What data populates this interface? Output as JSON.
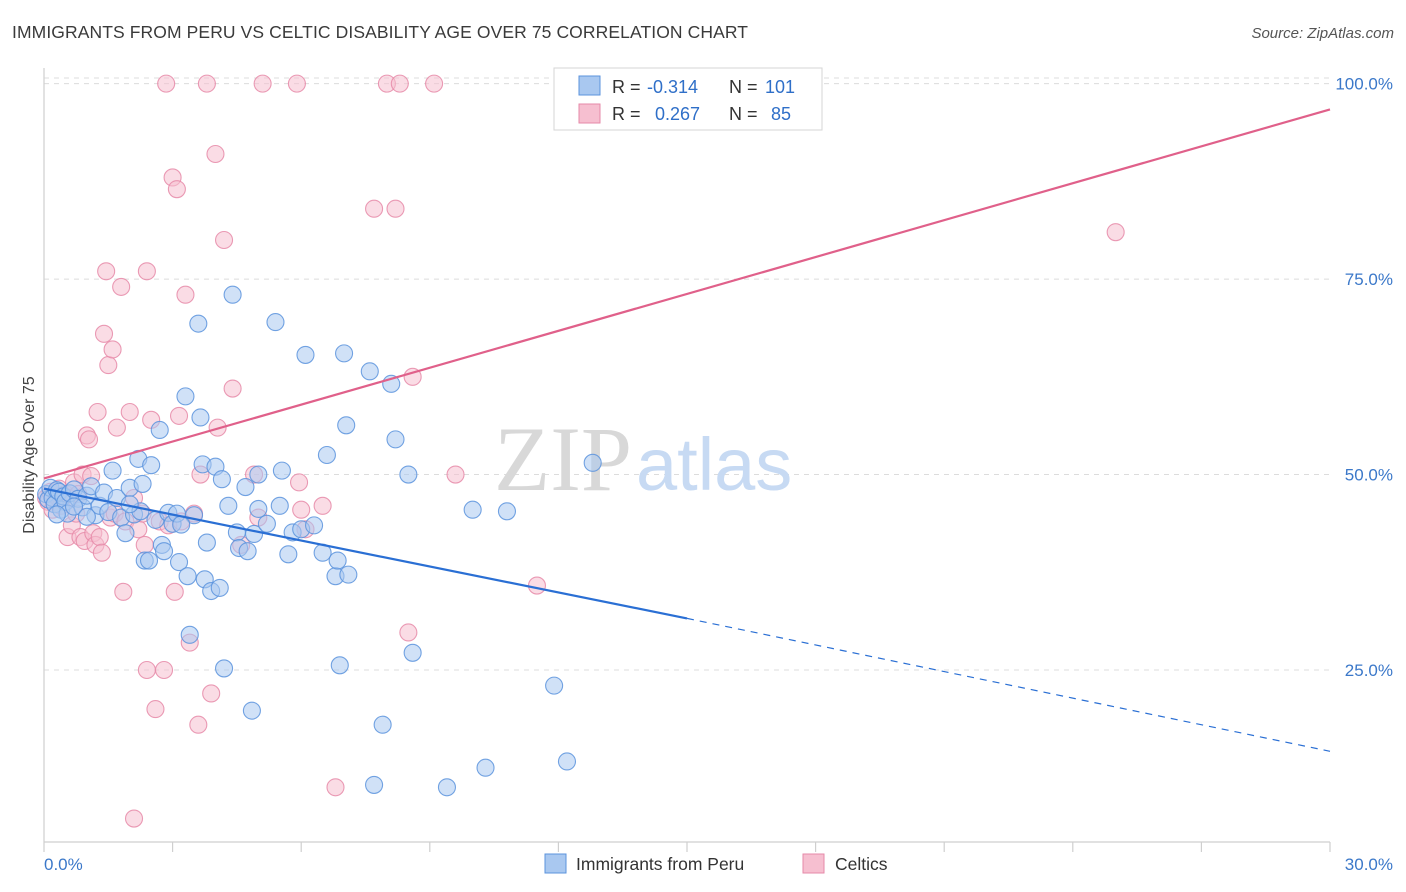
{
  "title": "IMMIGRANTS FROM PERU VS CELTIC DISABILITY AGE OVER 75 CORRELATION CHART",
  "source": "Source: ZipAtlas.com",
  "watermark": {
    "zip": "ZIP",
    "atlas": "atlas"
  },
  "legend_box": {
    "r_label": "R =",
    "n_label": "N =",
    "rows": [
      {
        "r": "-0.314",
        "n": "101"
      },
      {
        "r": "0.267",
        "n": "85"
      }
    ]
  },
  "bottom_legend": [
    "Immigrants from Peru",
    "Celtics"
  ],
  "colors": {
    "blue_fill": "#a9c8f0",
    "blue_stroke": "#5b93dd",
    "blue_line": "#2a6fd4",
    "pink_fill": "#f6bfd0",
    "pink_stroke": "#e68aa8",
    "pink_line": "#e0608a",
    "tick_text": "#3b78c9",
    "grid": "#dcdcdc"
  },
  "chart_data": {
    "type": "scatter",
    "title": "IMMIGRANTS FROM PERU VS CELTIC DISABILITY AGE OVER 75 CORRELATION CHART",
    "xlabel": "",
    "ylabel": "Disability Age Over 75",
    "xlim": [
      0,
      30
    ],
    "ylim": [
      3,
      102
    ],
    "x_tick_labels": [
      "0.0%",
      "30.0%"
    ],
    "y_ticks": [
      25,
      50,
      75,
      100
    ],
    "y_tick_labels": [
      "25.0%",
      "50.0%",
      "75.0%",
      "100.0%"
    ],
    "grid": "horizontal dashed",
    "legend_placement": "top-center",
    "series": [
      {
        "name": "Immigrants from Peru",
        "R": -0.314,
        "N": 101,
        "trend": {
          "x0": 0,
          "y0": 48.2,
          "x1": 15,
          "y1": 31.6,
          "dashed_to_x": 30,
          "dashed_to_y": 14.6
        },
        "points": [
          [
            0.05,
            47.5
          ],
          [
            0.1,
            46.8
          ],
          [
            0.15,
            48.3
          ],
          [
            0.2,
            47.0
          ],
          [
            0.25,
            46.2
          ],
          [
            0.3,
            48.0
          ],
          [
            0.35,
            47.8
          ],
          [
            0.4,
            45.5
          ],
          [
            0.45,
            47.2
          ],
          [
            0.5,
            46.5
          ],
          [
            0.55,
            45.0
          ],
          [
            0.6,
            47.6
          ],
          [
            0.7,
            48.1
          ],
          [
            0.8,
            46.9
          ],
          [
            0.9,
            45.8
          ],
          [
            1.0,
            47.3
          ],
          [
            1.1,
            48.5
          ],
          [
            1.2,
            44.8
          ],
          [
            1.3,
            46.0
          ],
          [
            1.4,
            47.7
          ],
          [
            1.5,
            45.2
          ],
          [
            1.6,
            50.5
          ],
          [
            1.7,
            47.0
          ],
          [
            1.8,
            44.5
          ],
          [
            1.9,
            42.5
          ],
          [
            2.0,
            48.3
          ],
          [
            2.1,
            44.9
          ],
          [
            2.2,
            52.0
          ],
          [
            2.25,
            45.3
          ],
          [
            2.3,
            48.8
          ],
          [
            2.35,
            39.0
          ],
          [
            2.45,
            39.0
          ],
          [
            2.5,
            51.2
          ],
          [
            2.6,
            44.2
          ],
          [
            2.7,
            55.7
          ],
          [
            2.75,
            41.0
          ],
          [
            2.8,
            40.2
          ],
          [
            2.9,
            45.1
          ],
          [
            3.0,
            43.7
          ],
          [
            3.1,
            45.0
          ],
          [
            3.15,
            38.8
          ],
          [
            3.3,
            60.0
          ],
          [
            3.35,
            37.0
          ],
          [
            3.4,
            29.5
          ],
          [
            3.5,
            44.8
          ],
          [
            3.6,
            69.3
          ],
          [
            3.65,
            57.3
          ],
          [
            3.7,
            51.3
          ],
          [
            3.75,
            36.6
          ],
          [
            3.8,
            41.3
          ],
          [
            3.9,
            35.1
          ],
          [
            4.0,
            51.0
          ],
          [
            4.1,
            35.5
          ],
          [
            4.15,
            49.4
          ],
          [
            4.2,
            25.2
          ],
          [
            4.3,
            46.0
          ],
          [
            4.4,
            73.0
          ],
          [
            4.5,
            42.6
          ],
          [
            4.55,
            40.6
          ],
          [
            4.7,
            48.4
          ],
          [
            4.75,
            40.2
          ],
          [
            4.85,
            19.8
          ],
          [
            4.9,
            42.4
          ],
          [
            5.0,
            50.0
          ],
          [
            5.2,
            43.7
          ],
          [
            5.4,
            69.5
          ],
          [
            5.5,
            46.0
          ],
          [
            5.55,
            50.5
          ],
          [
            5.7,
            39.8
          ],
          [
            5.8,
            42.6
          ],
          [
            6.0,
            43.0
          ],
          [
            6.1,
            65.3
          ],
          [
            6.3,
            43.5
          ],
          [
            6.5,
            40.0
          ],
          [
            6.6,
            52.5
          ],
          [
            6.8,
            37.0
          ],
          [
            6.85,
            39.0
          ],
          [
            6.9,
            25.6
          ],
          [
            7.0,
            65.5
          ],
          [
            7.05,
            56.3
          ],
          [
            7.1,
            37.2
          ],
          [
            7.6,
            63.2
          ],
          [
            7.7,
            10.3
          ],
          [
            7.9,
            18.0
          ],
          [
            8.1,
            61.6
          ],
          [
            8.2,
            54.5
          ],
          [
            8.5,
            50.0
          ],
          [
            8.6,
            27.2
          ],
          [
            9.4,
            10.0
          ],
          [
            10.0,
            45.5
          ],
          [
            10.3,
            12.5
          ],
          [
            10.8,
            45.3
          ],
          [
            11.9,
            23.0
          ],
          [
            12.2,
            13.3
          ],
          [
            12.8,
            51.5
          ],
          [
            0.7,
            45.9
          ],
          [
            1.0,
            44.6
          ],
          [
            2.0,
            46.2
          ],
          [
            3.2,
            43.6
          ],
          [
            5.0,
            45.6
          ],
          [
            0.3,
            44.9
          ]
        ]
      },
      {
        "name": "Celtics",
        "R": 0.267,
        "N": 85,
        "trend": {
          "x0": 0,
          "y0": 49.5,
          "x1": 30,
          "y1": 96.7
        },
        "points": [
          [
            0.05,
            47.0
          ],
          [
            0.1,
            46.5
          ],
          [
            0.15,
            47.8
          ],
          [
            0.2,
            45.5
          ],
          [
            0.3,
            47.2
          ],
          [
            0.35,
            48.2
          ],
          [
            0.4,
            46.0
          ],
          [
            0.5,
            47.5
          ],
          [
            0.55,
            42.0
          ],
          [
            0.6,
            47.0
          ],
          [
            0.65,
            43.5
          ],
          [
            0.7,
            49.0
          ],
          [
            0.75,
            45.0
          ],
          [
            0.8,
            47.5
          ],
          [
            0.85,
            42.0
          ],
          [
            0.9,
            50.0
          ],
          [
            0.95,
            41.5
          ],
          [
            1.0,
            55.0
          ],
          [
            1.05,
            54.5
          ],
          [
            1.1,
            49.8
          ],
          [
            1.15,
            42.5
          ],
          [
            1.2,
            41.0
          ],
          [
            1.25,
            58.0
          ],
          [
            1.3,
            42.0
          ],
          [
            1.35,
            40.0
          ],
          [
            1.4,
            68.0
          ],
          [
            1.45,
            76.0
          ],
          [
            1.5,
            64.0
          ],
          [
            1.55,
            44.5
          ],
          [
            1.6,
            66.0
          ],
          [
            1.65,
            45.0
          ],
          [
            1.7,
            56.0
          ],
          [
            1.8,
            74.0
          ],
          [
            1.85,
            35.0
          ],
          [
            1.9,
            44.0
          ],
          [
            2.0,
            58.0
          ],
          [
            2.1,
            47.0
          ],
          [
            2.2,
            43.0
          ],
          [
            2.3,
            45.0
          ],
          [
            2.35,
            41.0
          ],
          [
            2.4,
            25.0
          ],
          [
            2.5,
            57.0
          ],
          [
            2.6,
            20.0
          ],
          [
            2.7,
            44.0
          ],
          [
            2.8,
            25.0
          ],
          [
            2.85,
            100.0
          ],
          [
            2.9,
            43.5
          ],
          [
            3.0,
            88.0
          ],
          [
            3.05,
            35.0
          ],
          [
            3.1,
            86.5
          ],
          [
            3.15,
            57.5
          ],
          [
            3.2,
            44.0
          ],
          [
            3.3,
            73.0
          ],
          [
            3.4,
            28.5
          ],
          [
            3.5,
            45.0
          ],
          [
            3.6,
            18.0
          ],
          [
            3.65,
            50.0
          ],
          [
            3.8,
            100.0
          ],
          [
            3.9,
            22.0
          ],
          [
            4.0,
            91.0
          ],
          [
            4.05,
            56.0
          ],
          [
            4.2,
            80.0
          ],
          [
            4.4,
            61.0
          ],
          [
            4.6,
            41.0
          ],
          [
            4.9,
            50.0
          ],
          [
            5.0,
            44.5
          ],
          [
            5.1,
            100.0
          ],
          [
            5.9,
            100.0
          ],
          [
            5.95,
            49.0
          ],
          [
            6.0,
            45.5
          ],
          [
            6.1,
            43.0
          ],
          [
            6.5,
            46.0
          ],
          [
            6.8,
            10.0
          ],
          [
            7.7,
            84.0
          ],
          [
            8.0,
            100.0
          ],
          [
            8.2,
            84.0
          ],
          [
            8.3,
            100.0
          ],
          [
            8.5,
            29.8
          ],
          [
            8.6,
            62.5
          ],
          [
            9.1,
            100.0
          ],
          [
            9.6,
            50.0
          ],
          [
            11.5,
            35.8
          ],
          [
            25.0,
            81.0
          ],
          [
            2.4,
            76.0
          ],
          [
            2.1,
            6.0
          ]
        ]
      }
    ]
  }
}
